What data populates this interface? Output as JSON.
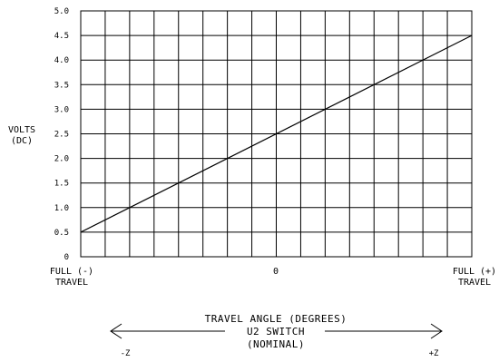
{
  "chart_data": {
    "type": "line",
    "title": "",
    "ylabel": [
      "VOLTS",
      "(DC)"
    ],
    "ylim": [
      0,
      5
    ],
    "yticks": [
      "0",
      "0.5",
      "1.0",
      "1.5",
      "2.0",
      "2.5",
      "3.0",
      "3.5",
      "4.0",
      "4.5",
      "5.0"
    ],
    "xlim": [
      -1,
      1
    ],
    "xtick_labels": {
      "left": [
        "FULL (-)",
        "TRAVEL"
      ],
      "center": "0",
      "right": [
        "FULL (+)",
        "TRAVEL"
      ]
    },
    "grid": true,
    "series": [
      {
        "x": [
          -1,
          1
        ],
        "y": [
          0.5,
          4.5
        ]
      }
    ],
    "xlabel": {
      "line1": "TRAVEL ANGLE (DEGREES)",
      "line2": "U2 SWITCH",
      "line3": "(NOMINAL)",
      "left_end": "-Z",
      "right_end": "+Z"
    },
    "colors": {
      "line": "#000000",
      "grid": "#000000",
      "background": "#ffffff"
    }
  }
}
